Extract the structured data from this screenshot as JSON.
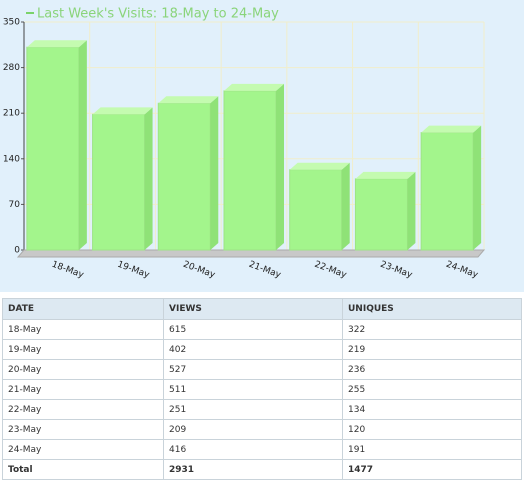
{
  "chart_data": {
    "type": "bar",
    "title": "Last Week's Visits: 18-May to 24-May",
    "categories": [
      "18-May",
      "19-May",
      "20-May",
      "21-May",
      "22-May",
      "23-May",
      "24-May"
    ],
    "values": [
      322,
      219,
      236,
      255,
      134,
      120,
      191
    ],
    "color": "#a3f58c",
    "ylim": [
      0,
      350
    ],
    "yticks": [
      0,
      70,
      140,
      210,
      280,
      350
    ],
    "grid": true
  },
  "table": {
    "columns": [
      "DATE",
      "VIEWS",
      "UNIQUES"
    ],
    "rows": [
      [
        "18-May",
        615,
        322
      ],
      [
        "19-May",
        402,
        219
      ],
      [
        "20-May",
        527,
        236
      ],
      [
        "21-May",
        511,
        255
      ],
      [
        "22-May",
        251,
        134
      ],
      [
        "23-May",
        209,
        120
      ],
      [
        "24-May",
        416,
        191
      ]
    ],
    "total": [
      "Total",
      2931,
      1477
    ]
  }
}
